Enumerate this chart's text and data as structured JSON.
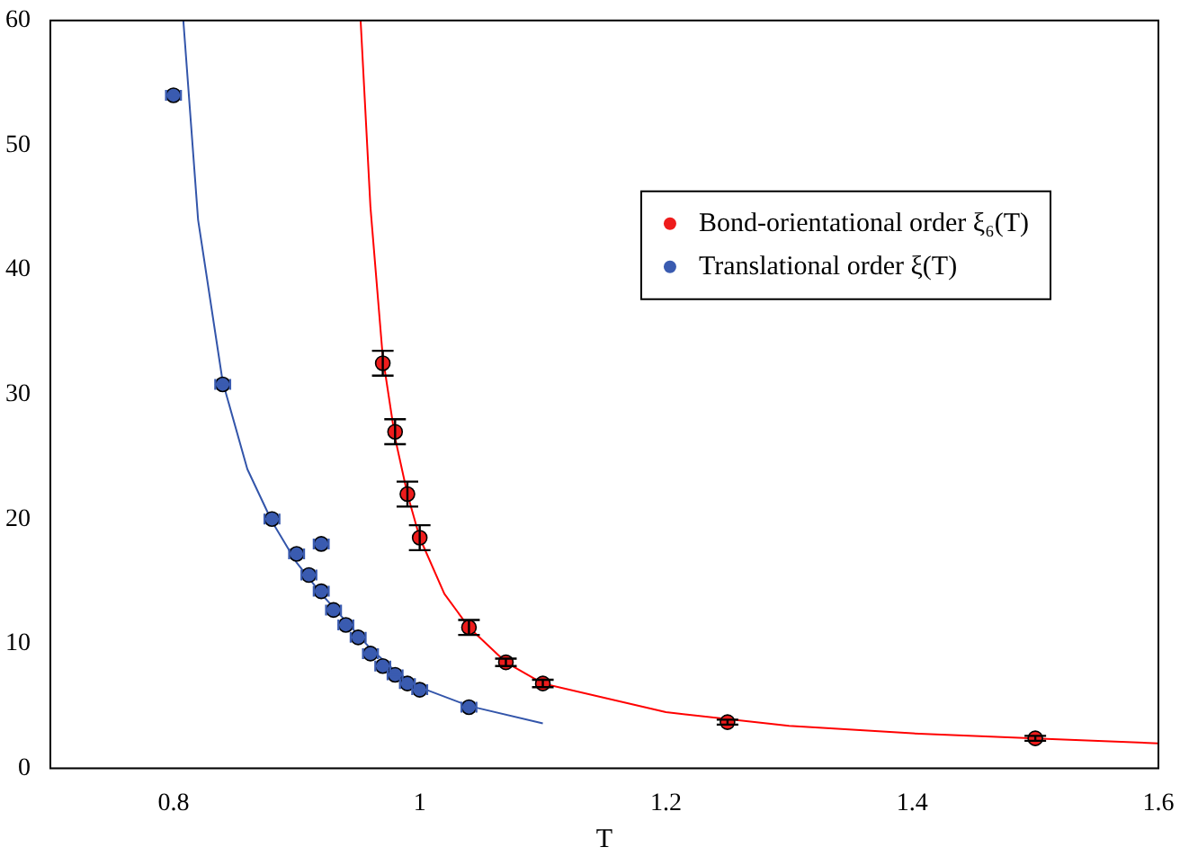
{
  "chart_data": {
    "type": "scatter",
    "xlabel": "T",
    "xlim": [
      0.7,
      1.6
    ],
    "xticks": [
      0.8,
      1,
      1.2,
      1.4,
      1.6
    ],
    "ylim": [
      0,
      60
    ],
    "yticks": [
      0,
      10,
      20,
      30,
      40,
      50,
      60
    ],
    "grid": false,
    "legend": "top right",
    "marker": "circle",
    "series": [
      {
        "name": "Bond-orientational order ξ₆(T)",
        "color": "#ee1c1c",
        "x": [
          0.97,
          0.98,
          0.99,
          1.0,
          1.04,
          1.07,
          1.1,
          1.25,
          1.5
        ],
        "values": [
          32.5,
          27,
          22,
          18.5,
          11.3,
          8.5,
          6.8,
          3.7,
          2.4
        ],
        "errors": [
          1,
          1,
          1,
          1,
          0.6,
          0.3,
          0.3,
          0.2,
          0.2
        ]
      },
      {
        "name": "Translational order ξ(T)",
        "color": "#3a5bb0",
        "x": [
          0.8,
          0.84,
          0.88,
          0.9,
          0.91,
          0.92,
          0.92,
          0.93,
          0.94,
          0.95,
          0.96,
          0.97,
          0.98,
          0.99,
          1.0,
          1.04
        ],
        "values": [
          54,
          30.8,
          20,
          17.2,
          15.5,
          14.2,
          18,
          12.7,
          11.5,
          10.5,
          9.2,
          8.2,
          7.5,
          6.8,
          6.3,
          4.9
        ],
        "xerrors": [
          0.006,
          0.006,
          0.006,
          0.006,
          0.006,
          0.006,
          0.006,
          0.006,
          0.006,
          0.006,
          0.006,
          0.006,
          0.006,
          0.006,
          0.006,
          0.006
        ]
      },
      {
        "type": "line",
        "color": "#ff0000",
        "marker": "none",
        "x": [
          0.952,
          0.96,
          0.97,
          0.98,
          0.99,
          1.0,
          1.02,
          1.04,
          1.07,
          1.1,
          1.2,
          1.3,
          1.4,
          1.5,
          1.6
        ],
        "values": [
          60,
          45,
          33,
          26.5,
          22,
          18.5,
          14,
          11.3,
          8.5,
          6.8,
          4.5,
          3.4,
          2.8,
          2.4,
          2.0
        ]
      },
      {
        "type": "line",
        "color": "#3355aa",
        "marker": "none",
        "x": [
          0.808,
          0.82,
          0.84,
          0.86,
          0.88,
          0.9,
          0.92,
          0.94,
          0.96,
          0.98,
          1.0,
          1.04,
          1.1
        ],
        "values": [
          60,
          44,
          31,
          24,
          19.8,
          16.5,
          14,
          11.8,
          9.6,
          7.8,
          6.5,
          5,
          3.6
        ]
      }
    ]
  }
}
